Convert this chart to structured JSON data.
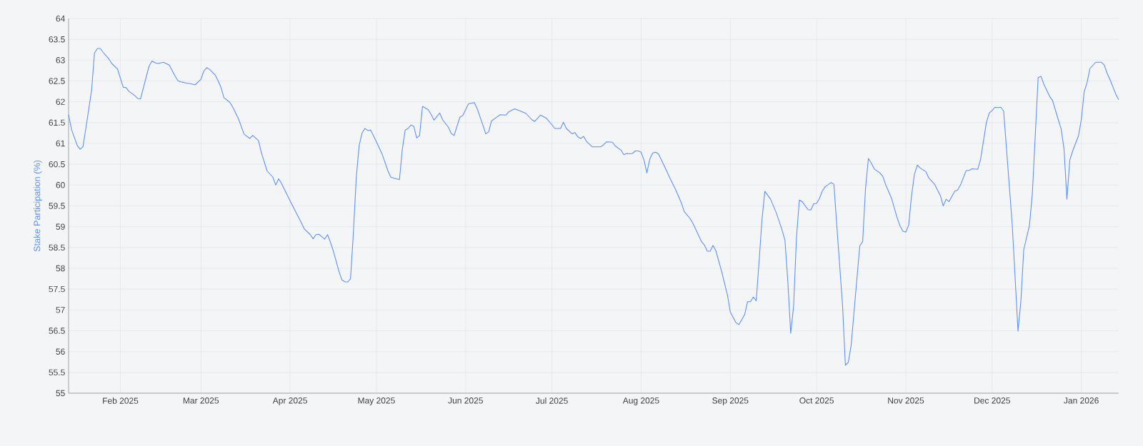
{
  "chart_data": {
    "type": "line",
    "ylabel": "Stake Participation (%)",
    "x": [
      "2025-01-14",
      "2025-01-15",
      "2025-01-17",
      "2025-01-18",
      "2025-01-19",
      "2025-01-20",
      "2025-01-22",
      "2025-01-23",
      "2025-01-24",
      "2025-01-25",
      "2025-01-26",
      "2025-01-28",
      "2025-01-29",
      "2025-01-31",
      "2025-02-02",
      "2025-02-03",
      "2025-02-04",
      "2025-02-06",
      "2025-02-07",
      "2025-02-08",
      "2025-02-10",
      "2025-02-11",
      "2025-02-12",
      "2025-02-13",
      "2025-02-14",
      "2025-02-16",
      "2025-02-18",
      "2025-02-20",
      "2025-02-21",
      "2025-02-22",
      "2025-02-24",
      "2025-02-25",
      "2025-02-27",
      "2025-03-01",
      "2025-03-02",
      "2025-03-03",
      "2025-03-04",
      "2025-03-06",
      "2025-03-07",
      "2025-03-08",
      "2025-03-09",
      "2025-03-11",
      "2025-03-12",
      "2025-03-14",
      "2025-03-16",
      "2025-03-18",
      "2025-03-19",
      "2025-03-21",
      "2025-03-22",
      "2025-03-24",
      "2025-03-26",
      "2025-03-27",
      "2025-03-28",
      "2025-03-29",
      "2025-04-01",
      "2025-04-03",
      "2025-04-05",
      "2025-04-06",
      "2025-04-08",
      "2025-04-09",
      "2025-04-10",
      "2025-04-11",
      "2025-04-13",
      "2025-04-14",
      "2025-04-15",
      "2025-04-16",
      "2025-04-18",
      "2025-04-19",
      "2025-04-20",
      "2025-04-21",
      "2025-04-22",
      "2025-04-23",
      "2025-04-24",
      "2025-04-25",
      "2025-04-26",
      "2025-04-27",
      "2025-04-28",
      "2025-04-29",
      "2025-05-01",
      "2025-05-03",
      "2025-05-05",
      "2025-05-06",
      "2025-05-07",
      "2025-05-09",
      "2025-05-10",
      "2025-05-11",
      "2025-05-12",
      "2025-05-13",
      "2025-05-14",
      "2025-05-15",
      "2025-05-16",
      "2025-05-17",
      "2025-05-19",
      "2025-05-20",
      "2025-05-21",
      "2025-05-23",
      "2025-05-24",
      "2025-05-26",
      "2025-05-27",
      "2025-05-28",
      "2025-05-30",
      "2025-05-31",
      "2025-06-02",
      "2025-06-04",
      "2025-06-05",
      "2025-06-07",
      "2025-06-08",
      "2025-06-09",
      "2025-06-10",
      "2025-06-12",
      "2025-06-13",
      "2025-06-15",
      "2025-06-16",
      "2025-06-18",
      "2025-06-20",
      "2025-06-22",
      "2025-06-24",
      "2025-06-25",
      "2025-06-27",
      "2025-06-29",
      "2025-07-01",
      "2025-07-02",
      "2025-07-04",
      "2025-07-05",
      "2025-07-06",
      "2025-07-08",
      "2025-07-09",
      "2025-07-10",
      "2025-07-11",
      "2025-07-12",
      "2025-07-13",
      "2025-07-15",
      "2025-07-18",
      "2025-07-19",
      "2025-07-20",
      "2025-07-22",
      "2025-07-23",
      "2025-07-25",
      "2025-07-26",
      "2025-07-27",
      "2025-07-28",
      "2025-07-29",
      "2025-07-30",
      "2025-07-31",
      "2025-08-01",
      "2025-08-02",
      "2025-08-03",
      "2025-08-04",
      "2025-08-05",
      "2025-08-06",
      "2025-08-07",
      "2025-08-09",
      "2025-08-11",
      "2025-08-13",
      "2025-08-15",
      "2025-08-16",
      "2025-08-18",
      "2025-08-19",
      "2025-08-21",
      "2025-08-22",
      "2025-08-23",
      "2025-08-24",
      "2025-08-25",
      "2025-08-26",
      "2025-08-27",
      "2025-08-29",
      "2025-08-31",
      "2025-09-01",
      "2025-09-03",
      "2025-09-04",
      "2025-09-06",
      "2025-09-07",
      "2025-09-08",
      "2025-09-09",
      "2025-09-10",
      "2025-09-11",
      "2025-09-12",
      "2025-09-13",
      "2025-09-15",
      "2025-09-17",
      "2025-09-19",
      "2025-09-20",
      "2025-09-21",
      "2025-09-22",
      "2025-09-23",
      "2025-09-24",
      "2025-09-25",
      "2025-09-26",
      "2025-09-28",
      "2025-09-29",
      "2025-09-30",
      "2025-10-01",
      "2025-10-02",
      "2025-10-03",
      "2025-10-04",
      "2025-10-06",
      "2025-10-07",
      "2025-10-08",
      "2025-10-10",
      "2025-10-11",
      "2025-10-12",
      "2025-10-13",
      "2025-10-16",
      "2025-10-17",
      "2025-10-18",
      "2025-10-19",
      "2025-10-20",
      "2025-10-21",
      "2025-10-23",
      "2025-10-24",
      "2025-10-25",
      "2025-10-27",
      "2025-10-29",
      "2025-10-30",
      "2025-10-31",
      "2025-11-01",
      "2025-11-02",
      "2025-11-03",
      "2025-11-04",
      "2025-11-05",
      "2025-11-06",
      "2025-11-08",
      "2025-11-09",
      "2025-11-11",
      "2025-11-13",
      "2025-11-14",
      "2025-11-15",
      "2025-11-16",
      "2025-11-18",
      "2025-11-19",
      "2025-11-20",
      "2025-11-22",
      "2025-11-23",
      "2025-11-24",
      "2025-11-26",
      "2025-11-27",
      "2025-11-29",
      "2025-11-30",
      "2025-12-01",
      "2025-12-02",
      "2025-12-03",
      "2025-12-04",
      "2025-12-05",
      "2025-12-06",
      "2025-12-08",
      "2025-12-10",
      "2025-12-11",
      "2025-12-12",
      "2025-12-14",
      "2025-12-15",
      "2025-12-17",
      "2025-12-18",
      "2025-12-19",
      "2025-12-21",
      "2025-12-22",
      "2025-12-24",
      "2025-12-25",
      "2025-12-26",
      "2025-12-27",
      "2025-12-28",
      "2025-12-29",
      "2025-12-31",
      "2026-01-01",
      "2026-01-02",
      "2026-01-03",
      "2026-01-04",
      "2026-01-06",
      "2026-01-08",
      "2026-01-09",
      "2026-01-10",
      "2026-01-11",
      "2026-01-13",
      "2026-01-14"
    ],
    "series": [
      {
        "color": "#5b8ff9",
        "values": [
          61.69,
          61.34,
          60.95,
          60.86,
          60.92,
          61.36,
          62.28,
          63.17,
          63.28,
          63.28,
          63.19,
          63.03,
          62.92,
          62.79,
          62.35,
          62.34,
          62.25,
          62.15,
          62.08,
          62.07,
          62.6,
          62.86,
          62.98,
          62.94,
          62.92,
          62.95,
          62.88,
          62.62,
          62.51,
          62.48,
          62.45,
          62.44,
          62.41,
          62.54,
          62.74,
          62.82,
          62.78,
          62.64,
          62.5,
          62.34,
          62.1,
          61.99,
          61.88,
          61.6,
          61.22,
          61.12,
          61.19,
          61.07,
          60.78,
          60.34,
          60.19,
          60.0,
          60.15,
          60.04,
          59.62,
          59.35,
          59.08,
          58.94,
          58.81,
          58.71,
          58.81,
          58.82,
          58.7,
          58.81,
          58.63,
          58.42,
          57.92,
          57.72,
          57.68,
          57.67,
          57.75,
          58.86,
          60.19,
          60.95,
          61.25,
          61.36,
          61.31,
          61.32,
          61.04,
          60.74,
          60.34,
          60.19,
          60.17,
          60.13,
          60.86,
          61.32,
          61.36,
          61.44,
          61.41,
          61.13,
          61.19,
          61.89,
          61.81,
          61.7,
          61.56,
          61.73,
          61.57,
          61.39,
          61.24,
          61.19,
          61.63,
          61.67,
          61.95,
          61.98,
          61.84,
          61.44,
          61.23,
          61.28,
          61.54,
          61.64,
          61.69,
          61.68,
          61.76,
          61.83,
          61.78,
          61.72,
          61.57,
          61.53,
          61.68,
          61.61,
          61.45,
          61.36,
          61.36,
          61.51,
          61.36,
          61.23,
          61.26,
          61.16,
          61.12,
          61.17,
          61.05,
          60.92,
          60.92,
          60.97,
          61.04,
          61.03,
          60.94,
          60.84,
          60.73,
          60.76,
          60.75,
          60.76,
          60.82,
          60.82,
          60.79,
          60.6,
          60.29,
          60.62,
          60.77,
          60.79,
          60.75,
          60.47,
          60.17,
          59.89,
          59.57,
          59.36,
          59.2,
          59.08,
          58.79,
          58.64,
          58.56,
          58.41,
          58.41,
          58.55,
          58.42,
          57.92,
          57.36,
          56.95,
          56.69,
          56.65,
          56.89,
          57.2,
          57.2,
          57.31,
          57.22,
          58.16,
          59.16,
          59.85,
          59.66,
          59.33,
          58.92,
          58.67,
          57.68,
          56.44,
          57.09,
          58.74,
          59.64,
          59.6,
          59.41,
          59.4,
          59.55,
          59.56,
          59.68,
          59.86,
          59.96,
          60.06,
          60.02,
          59.04,
          57.12,
          55.67,
          55.74,
          56.15,
          58.54,
          58.64,
          59.92,
          60.64,
          60.53,
          60.39,
          60.29,
          60.21,
          60.01,
          59.69,
          59.21,
          59.02,
          58.89,
          58.87,
          59.04,
          59.75,
          60.26,
          60.48,
          60.41,
          60.32,
          60.17,
          60.02,
          59.75,
          59.5,
          59.66,
          59.6,
          59.85,
          59.88,
          60.0,
          60.35,
          60.35,
          60.39,
          60.38,
          60.62,
          61.5,
          61.73,
          61.79,
          61.87,
          61.86,
          61.87,
          61.78,
          60.87,
          59.04,
          56.49,
          57.21,
          58.45,
          59.04,
          59.81,
          62.58,
          62.61,
          62.42,
          62.13,
          62.03,
          61.57,
          61.35,
          60.86,
          59.66,
          60.6,
          60.82,
          61.18,
          61.57,
          62.24,
          62.46,
          62.8,
          62.95,
          62.95,
          62.88,
          62.68,
          62.53,
          62.18,
          62.05
        ]
      }
    ],
    "xlim": [
      "2025-01-14",
      "2026-01-14"
    ],
    "ylim": [
      55,
      64
    ],
    "xticks": [
      {
        "value": "2025-02-01",
        "label": "Feb 2025"
      },
      {
        "value": "2025-03-01",
        "label": "Mar 2025"
      },
      {
        "value": "2025-04-01",
        "label": "Apr 2025"
      },
      {
        "value": "2025-05-01",
        "label": "May 2025"
      },
      {
        "value": "2025-06-01",
        "label": "Jun 2025"
      },
      {
        "value": "2025-07-01",
        "label": "Jul 2025"
      },
      {
        "value": "2025-08-01",
        "label": "Aug 2025"
      },
      {
        "value": "2025-09-01",
        "label": "Sep 2025"
      },
      {
        "value": "2025-10-01",
        "label": "Oct 2025"
      },
      {
        "value": "2025-11-01",
        "label": "Nov 2025"
      },
      {
        "value": "2025-12-01",
        "label": "Dec 2025"
      },
      {
        "value": "2026-01-01",
        "label": "Jan 2026"
      }
    ],
    "yticks": [
      55,
      55.5,
      56,
      56.5,
      57,
      57.5,
      58,
      58.5,
      59,
      59.5,
      60,
      60.5,
      61,
      61.5,
      62,
      62.5,
      63,
      63.5,
      64
    ],
    "grid": true,
    "legend": false,
    "marker": "none",
    "line_style": "solid"
  }
}
